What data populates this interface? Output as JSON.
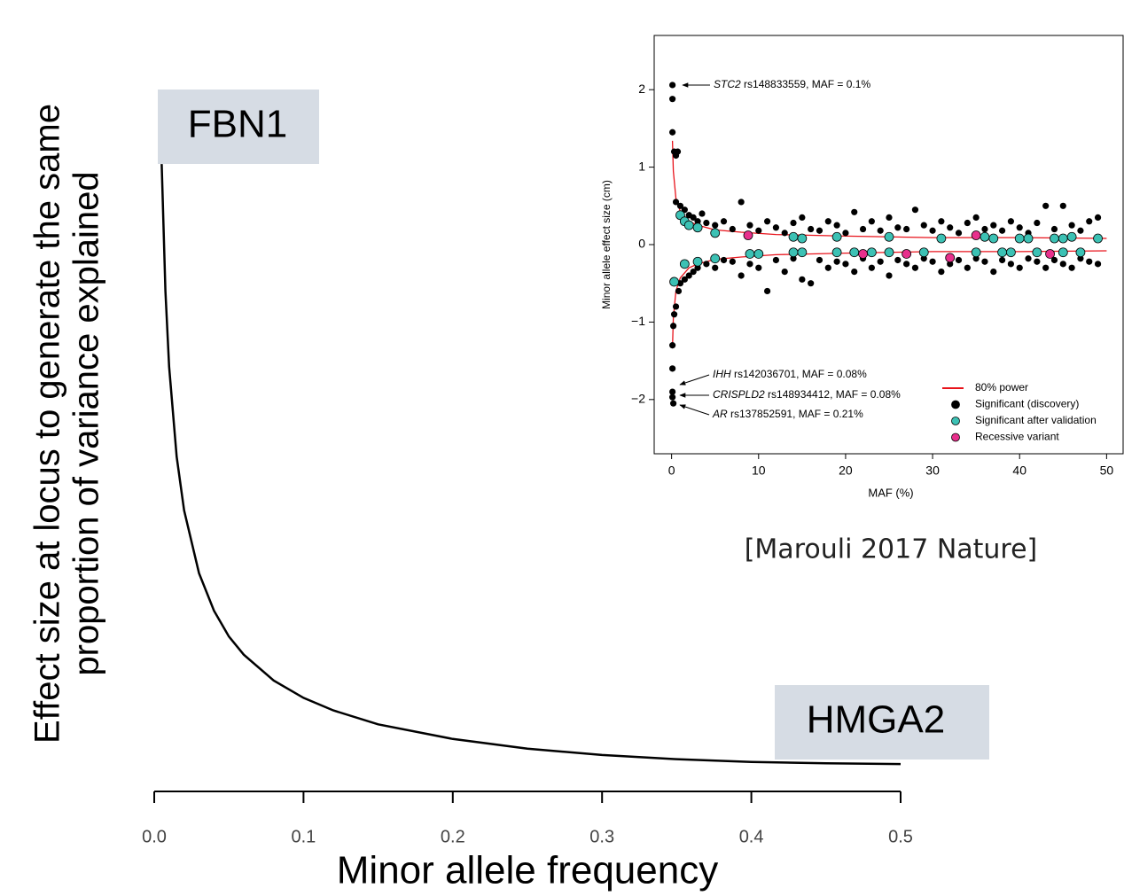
{
  "chart_data": [
    {
      "type": "line",
      "xlabel": "Minor allele frequency",
      "ylabel": [
        "Effect size at locus to generate the same",
        "proportion of variance explained"
      ],
      "xlim": [
        0,
        0.5
      ],
      "ylim": [
        0,
        11
      ],
      "xticks": [
        {
          "value": 0,
          "label": "0.0"
        },
        0.1,
        0.2,
        0.3,
        0.4,
        0.5
      ],
      "x": [
        0.005,
        0.0075,
        0.01,
        0.015,
        0.02,
        0.03,
        0.04,
        0.05,
        0.06,
        0.08,
        0.1,
        0.12,
        0.15,
        0.2,
        0.25,
        0.3,
        0.35,
        0.4,
        0.45,
        0.5
      ],
      "values": [
        10.02,
        8.2,
        7.11,
        5.82,
        5.05,
        4.15,
        3.61,
        3.24,
        2.98,
        2.61,
        2.36,
        2.18,
        1.98,
        1.77,
        1.63,
        1.54,
        1.48,
        1.44,
        1.42,
        1.41
      ],
      "color": "#000000",
      "annotations": [
        "FBN1",
        "HMGA2"
      ]
    },
    {
      "type": "scatter",
      "xlabel": "MAF (%)",
      "ylabel": "Minor allele effect size (cm)",
      "xlim": [
        -2,
        52
      ],
      "ylim": [
        -2.7,
        2.7
      ],
      "xticks": [
        0,
        10,
        20,
        30,
        40,
        50
      ],
      "yticks": [
        {
          "value": -2,
          "label": "−2"
        },
        {
          "value": -1,
          "label": "−1"
        },
        0,
        1,
        2
      ],
      "series": [
        {
          "name": "80% power",
          "color": "#e8131b",
          "marker": "line",
          "x": [
            0.1,
            0.2,
            0.5,
            1,
            2,
            3,
            5,
            8,
            12,
            20,
            30,
            40,
            50,
            null,
            0.1,
            0.2,
            0.5,
            1,
            2,
            3,
            5,
            8,
            12,
            20,
            30,
            40,
            50
          ],
          "values": [
            1.34,
            0.95,
            0.6,
            0.43,
            0.3,
            0.25,
            0.19,
            0.16,
            0.13,
            0.11,
            0.09,
            0.09,
            0.08,
            null,
            -1.34,
            -0.95,
            -0.6,
            -0.43,
            -0.3,
            -0.25,
            -0.19,
            -0.16,
            -0.13,
            -0.11,
            -0.09,
            -0.09,
            -0.08
          ]
        },
        {
          "name": "Significant (discovery)",
          "color": "#000000",
          "marker": "dot",
          "x": [
            0.1,
            0.1,
            0.1,
            0.3,
            0.5,
            0.7,
            0.5,
            1,
            1.5,
            2,
            2.5,
            3,
            3.5,
            4,
            5,
            6,
            7,
            8,
            9,
            10,
            11,
            12,
            13,
            14,
            15,
            16,
            17,
            18,
            19,
            20,
            21,
            22,
            23,
            24,
            25,
            26,
            27,
            28,
            29,
            30,
            31,
            32,
            33,
            34,
            35,
            36,
            37,
            38,
            39,
            40,
            41,
            42,
            43,
            44,
            45,
            46,
            47,
            48,
            49,
            0.1,
            0.1,
            0.1,
            0.2,
            0.1,
            0.2,
            0.3,
            0.5,
            0.8,
            1,
            1.5,
            2,
            2.5,
            3,
            4,
            5,
            6,
            7,
            8,
            9,
            10,
            11,
            12,
            13,
            14,
            15,
            16,
            17,
            18,
            19,
            20,
            21,
            22,
            23,
            24,
            25,
            26,
            27,
            28,
            29,
            30,
            31,
            32,
            33,
            34,
            35,
            36,
            37,
            38,
            39,
            40,
            41,
            42,
            43,
            44,
            45,
            46,
            47,
            48,
            49
          ],
          "values": [
            2.06,
            1.88,
            1.45,
            1.2,
            1.15,
            1.2,
            0.55,
            0.5,
            0.45,
            0.38,
            0.35,
            0.3,
            0.4,
            0.28,
            0.25,
            0.3,
            0.2,
            0.55,
            0.25,
            0.18,
            0.3,
            0.22,
            0.15,
            0.28,
            0.35,
            0.2,
            0.18,
            0.3,
            0.25,
            0.15,
            0.42,
            0.2,
            0.3,
            0.18,
            0.35,
            0.22,
            0.2,
            0.45,
            0.25,
            0.18,
            0.3,
            0.22,
            0.15,
            0.28,
            0.35,
            0.2,
            0.25,
            0.18,
            0.3,
            0.22,
            0.15,
            0.28,
            0.5,
            0.2,
            0.5,
            0.25,
            0.18,
            0.3,
            0.35,
            -1.6,
            -1.9,
            -1.97,
            -2.05,
            -1.3,
            -1.05,
            -0.9,
            -0.8,
            -0.6,
            -0.5,
            -0.45,
            -0.4,
            -0.35,
            -0.3,
            -0.25,
            -0.3,
            -0.2,
            -0.22,
            -0.4,
            -0.25,
            -0.3,
            -0.6,
            -0.2,
            -0.35,
            -0.18,
            -0.45,
            -0.5,
            -0.2,
            -0.3,
            -0.22,
            -0.25,
            -0.35,
            -0.18,
            -0.3,
            -0.22,
            -0.4,
            -0.2,
            -0.25,
            -0.3,
            -0.18,
            -0.22,
            -0.35,
            -0.25,
            -0.2,
            -0.3,
            -0.18,
            -0.22,
            -0.35,
            -0.2,
            -0.25,
            -0.3,
            -0.18,
            -0.22,
            -0.3,
            -0.2,
            -0.25,
            -0.3,
            -0.18,
            -0.22,
            -0.25
          ]
        },
        {
          "name": "Significant after validation",
          "color": "#3cc1b4",
          "marker": "dot",
          "x": [
            1,
            1.5,
            2,
            3,
            5,
            14,
            15,
            19,
            25,
            31,
            36,
            37,
            40,
            41,
            44,
            45,
            46,
            49,
            0.3,
            1.5,
            3,
            5,
            9,
            10,
            14,
            15,
            19,
            21,
            23,
            25,
            29,
            35,
            38,
            39,
            42,
            45,
            47
          ],
          "values": [
            0.38,
            0.3,
            0.25,
            0.22,
            0.15,
            0.1,
            0.08,
            0.1,
            0.1,
            0.08,
            0.1,
            0.08,
            0.08,
            0.08,
            0.08,
            0.08,
            0.1,
            0.08,
            -0.48,
            -0.25,
            -0.22,
            -0.18,
            -0.12,
            -0.12,
            -0.1,
            -0.1,
            -0.1,
            -0.1,
            -0.1,
            -0.1,
            -0.1,
            -0.1,
            -0.1,
            -0.1,
            -0.1,
            -0.1,
            -0.1
          ]
        },
        {
          "name": "Recessive variant",
          "color": "#e8308c",
          "marker": "dot",
          "x": [
            8.8,
            35,
            22,
            27,
            32,
            43.5
          ],
          "values": [
            0.12,
            0.12,
            -0.12,
            -0.12,
            -0.17,
            -0.12
          ]
        }
      ],
      "annotations": [
        {
          "gene": "STC2",
          "text": " rs148833559, MAF = 0.1%"
        },
        {
          "gene": "IHH",
          "text": " rs142036701, MAF = 0.08%"
        },
        {
          "gene": "CRISPLD2",
          "text": " rs148934412, MAF = 0.08%"
        },
        {
          "gene": "AR",
          "text": " rs137852591, MAF = 0.21%"
        }
      ]
    }
  ],
  "citation": "[Marouli 2017 Nature]"
}
